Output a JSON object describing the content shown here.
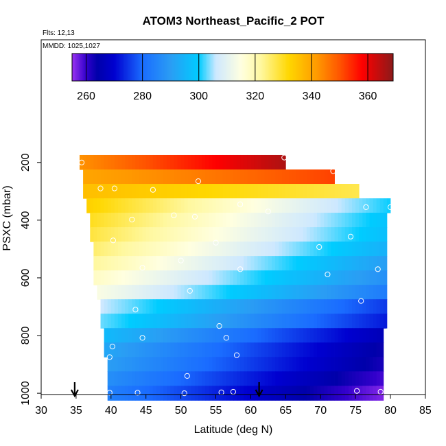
{
  "chart_data": {
    "type": "heatmap",
    "title": "ATOM3 Northeast_Pacific_2 POT",
    "annotations": [
      "Flts: 12,13",
      "MMDD: 1025,1027"
    ],
    "xlabel": "Latitude (deg N)",
    "ylabel": "PSXC (mbar)",
    "xlim": [
      30,
      85
    ],
    "ylim": [
      1000,
      0
    ],
    "y_reversed": true,
    "x_ticks": [
      30,
      35,
      40,
      45,
      50,
      55,
      60,
      65,
      70,
      75,
      80,
      85
    ],
    "y_ticks": [
      200,
      400,
      600,
      800,
      1000
    ],
    "grid": false,
    "legend": "colorbar-top",
    "colorbar": {
      "range": [
        255,
        369
      ],
      "ticks": [
        260,
        280,
        300,
        320,
        340,
        360
      ],
      "stops": [
        {
          "value": 255,
          "color": "#9a32f0"
        },
        {
          "value": 260,
          "color": "#3300cc"
        },
        {
          "value": 264,
          "color": "#0000aa"
        },
        {
          "value": 270,
          "color": "#0000d0"
        },
        {
          "value": 280,
          "color": "#1a6cff"
        },
        {
          "value": 290,
          "color": "#2a9df4"
        },
        {
          "value": 300,
          "color": "#00ccff"
        },
        {
          "value": 306,
          "color": "#cde8ff"
        },
        {
          "value": 315,
          "color": "#ffffe0"
        },
        {
          "value": 322,
          "color": "#fff8a0"
        },
        {
          "value": 332,
          "color": "#ffd700"
        },
        {
          "value": 342,
          "color": "#ff9900"
        },
        {
          "value": 350,
          "color": "#ff5500"
        },
        {
          "value": 358,
          "color": "#ff0000"
        },
        {
          "value": 369,
          "color": "#8b1a1a"
        }
      ]
    },
    "arrows_x": [
      34.8,
      61.2
    ],
    "rows": [
      {
        "p": 200,
        "lat_start": 35.5,
        "lat_end": 65,
        "pot_start": 343,
        "pot_end": 366
      },
      {
        "p": 250,
        "lat_start": 36,
        "lat_end": 72,
        "pot_start": 340,
        "pot_end": 352
      },
      {
        "p": 300,
        "lat_start": 36,
        "lat_end": 75.5,
        "pot_start": 336,
        "pot_end": 327
      },
      {
        "p": 350,
        "lat_start": 36.5,
        "lat_end": 80,
        "pot_start": 333,
        "pot_end": 300
      },
      {
        "p": 400,
        "lat_start": 37,
        "lat_end": 79.5,
        "pot_start": 330,
        "pot_end": 298
      },
      {
        "p": 450,
        "lat_start": 37,
        "lat_end": 79.5,
        "pot_start": 328,
        "pot_end": 297
      },
      {
        "p": 500,
        "lat_start": 37.5,
        "lat_end": 79.5,
        "pot_start": 325,
        "pot_end": 294
      },
      {
        "p": 550,
        "lat_start": 37.5,
        "lat_end": 79.5,
        "pot_start": 322,
        "pot_end": 290
      },
      {
        "p": 600,
        "lat_start": 37.5,
        "lat_end": 79.5,
        "pot_start": 318,
        "pot_end": 287
      },
      {
        "p": 650,
        "lat_start": 38,
        "lat_end": 79.5,
        "pot_start": 314,
        "pot_end": 283
      },
      {
        "p": 700,
        "lat_start": 38.5,
        "lat_end": 79.5,
        "pot_start": 306,
        "pot_end": 275
      },
      {
        "p": 750,
        "lat_start": 38.5,
        "lat_end": 79.5,
        "pot_start": 303,
        "pot_end": 272
      },
      {
        "p": 800,
        "lat_start": 39,
        "lat_end": 79,
        "pot_start": 296,
        "pot_end": 266
      },
      {
        "p": 850,
        "lat_start": 39,
        "lat_end": 79,
        "pot_start": 292,
        "pot_end": 263
      },
      {
        "p": 900,
        "lat_start": 39.5,
        "lat_end": 79,
        "pot_start": 290,
        "pot_end": 262
      },
      {
        "p": 950,
        "lat_start": 39.5,
        "lat_end": 79,
        "pot_start": 287,
        "pot_end": 259
      },
      {
        "p": 1000,
        "lat_start": 39.5,
        "lat_end": 79,
        "pot_start": 284,
        "pot_end": 256
      }
    ],
    "points": [
      [
        35.8,
        200
      ],
      [
        64.8,
        183
      ],
      [
        71.8,
        230
      ],
      [
        38.5,
        290
      ],
      [
        40.5,
        290
      ],
      [
        46,
        295
      ],
      [
        52.5,
        265
      ],
      [
        62.5,
        370
      ],
      [
        58.5,
        345
      ],
      [
        76.5,
        355
      ],
      [
        80,
        355
      ],
      [
        43,
        398
      ],
      [
        49,
        383
      ],
      [
        52,
        388
      ],
      [
        40.3,
        470
      ],
      [
        55,
        478
      ],
      [
        69.8,
        493
      ],
      [
        74.3,
        457
      ],
      [
        44.5,
        565
      ],
      [
        50,
        540
      ],
      [
        58.5,
        570
      ],
      [
        71,
        588
      ],
      [
        78.2,
        570
      ],
      [
        51.3,
        645
      ],
      [
        43.5,
        710
      ],
      [
        75.8,
        680
      ],
      [
        55.5,
        767
      ],
      [
        79.5,
        785
      ],
      [
        44.5,
        808
      ],
      [
        56.5,
        808
      ],
      [
        40.2,
        838
      ],
      [
        58,
        868
      ],
      [
        39.8,
        875
      ],
      [
        50.9,
        940
      ],
      [
        39.8,
        998
      ],
      [
        43.8,
        998
      ],
      [
        50.5,
        1000
      ],
      [
        55.8,
        997
      ],
      [
        57.5,
        995
      ],
      [
        75.2,
        992
      ],
      [
        78.6,
        995
      ]
    ]
  }
}
